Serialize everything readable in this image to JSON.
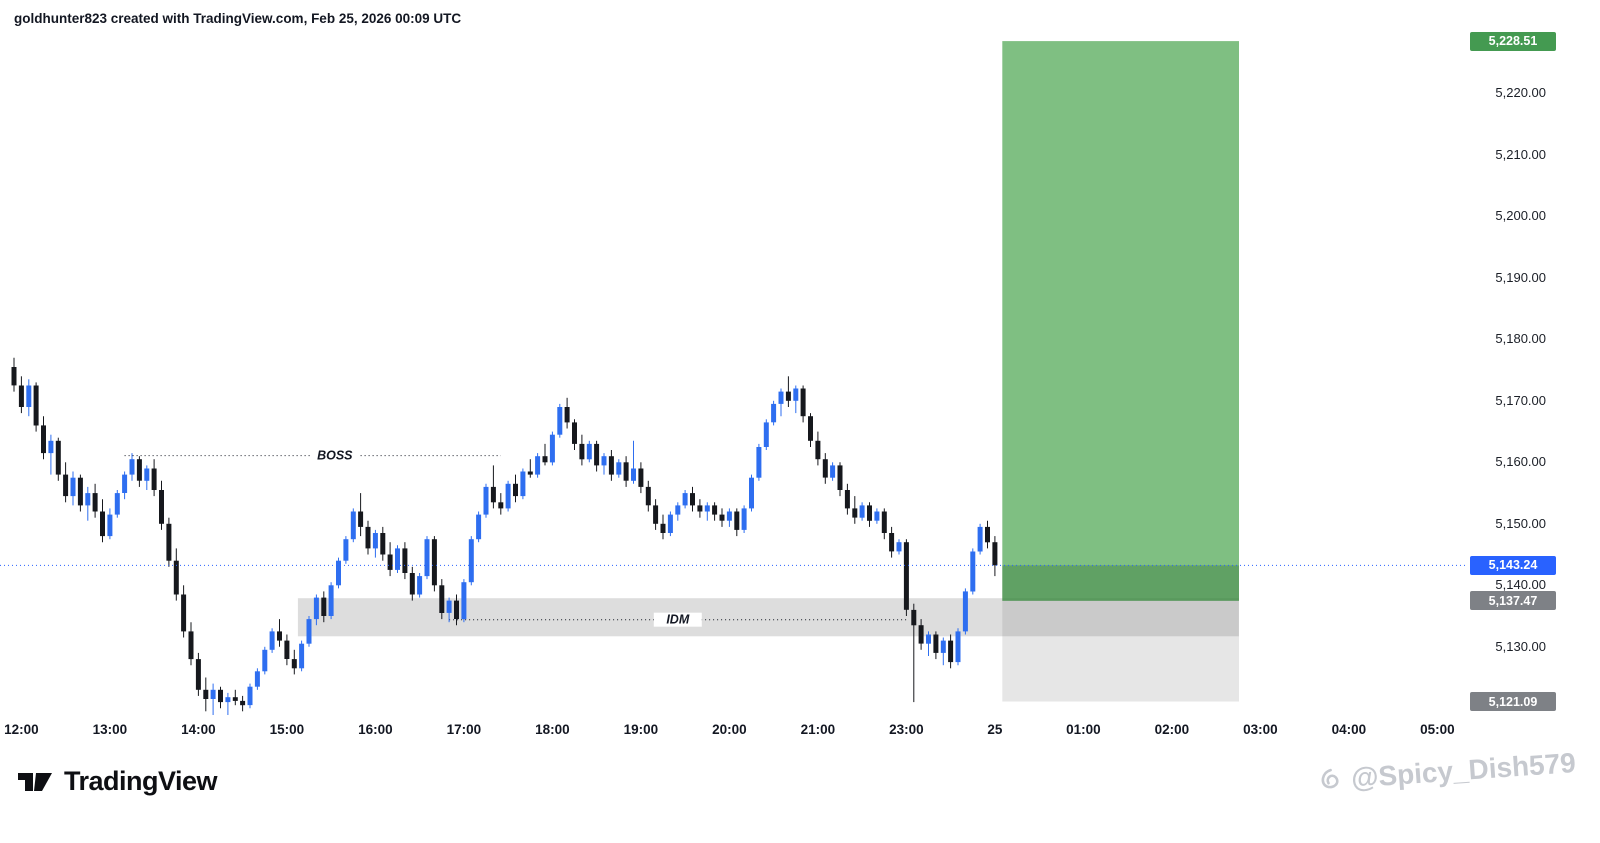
{
  "attribution": "goldhunter823 created with TradingView.com, Feb 25, 2026 00:09 UTC",
  "footer": {
    "brand": "TradingView"
  },
  "watermark": {
    "handle": "@Spicy_Dish579"
  },
  "colors": {
    "up": "#2e6ef0",
    "down": "#16181d",
    "current_price": "#2962ff",
    "badge_green": "#449a51",
    "badge_blue": "#2962ff",
    "badge_gray": "#7e8186"
  },
  "chart_data": {
    "type": "candlestick",
    "title": "",
    "price_range_visible": [
      5118.9,
      5235.2
    ],
    "grid": "off",
    "candles": [
      [
        5175.5,
        5177,
        5171.5,
        5172.5
      ],
      [
        5172.5,
        5174,
        5168,
        5169
      ],
      [
        5169,
        5173.5,
        5167.5,
        5172.5
      ],
      [
        5172.5,
        5173,
        5165,
        5166
      ],
      [
        5166,
        5167.5,
        5160.5,
        5161.5
      ],
      [
        5161.5,
        5164.5,
        5158,
        5163.5
      ],
      [
        5163.5,
        5164,
        5157,
        5158
      ],
      [
        5158,
        5160,
        5153.5,
        5154.5
      ],
      [
        5154.5,
        5158.5,
        5153,
        5157.5
      ],
      [
        5157.5,
        5158,
        5152,
        5153
      ],
      [
        5153,
        5156,
        5150.5,
        5155
      ],
      [
        5155,
        5156.5,
        5151,
        5152
      ],
      [
        5152,
        5154,
        5147,
        5148
      ],
      [
        5148,
        5152.5,
        5147.5,
        5151.5
      ],
      [
        5151.5,
        5155.5,
        5151,
        5155
      ],
      [
        5155,
        5158.5,
        5154,
        5158
      ],
      [
        5158,
        5161.5,
        5157,
        5160.5
      ],
      [
        5160.5,
        5161,
        5156,
        5157
      ],
      [
        5157,
        5159.5,
        5155.5,
        5159
      ],
      [
        5159,
        5160.5,
        5154.5,
        5155.5
      ],
      [
        5155.5,
        5157,
        5149,
        5150
      ],
      [
        5150,
        5151,
        5143,
        5144
      ],
      [
        5144,
        5146,
        5137.5,
        5138.5
      ],
      [
        5138.5,
        5140,
        5131.5,
        5132.5
      ],
      [
        5132.5,
        5134,
        5127,
        5128
      ],
      [
        5128,
        5129,
        5122,
        5123
      ],
      [
        5123,
        5125,
        5119.5,
        5121.5
      ],
      [
        5121.5,
        5124,
        5118.5,
        5123
      ],
      [
        5123,
        5123.5,
        5120,
        5121
      ],
      [
        5121,
        5122.5,
        5118,
        5121.8
      ],
      [
        5121.8,
        5123,
        5120.5,
        5121.2
      ],
      [
        5121.2,
        5122,
        5119.5,
        5120.5
      ],
      [
        5120.5,
        5124,
        5120,
        5123.5
      ],
      [
        5123.5,
        5126.5,
        5123,
        5126
      ],
      [
        5126,
        5130,
        5125.5,
        5129.5
      ],
      [
        5129.5,
        5133,
        5129,
        5132.5
      ],
      [
        5132.5,
        5134.5,
        5130,
        5131
      ],
      [
        5131,
        5132,
        5127,
        5128
      ],
      [
        5128,
        5129.5,
        5125.5,
        5126.5
      ],
      [
        5126.5,
        5131,
        5126,
        5130.5
      ],
      [
        5130.5,
        5135,
        5130,
        5134.5
      ],
      [
        5134.5,
        5138.5,
        5133.5,
        5138
      ],
      [
        5138,
        5139,
        5134,
        5135
      ],
      [
        5135,
        5140.5,
        5134.5,
        5140
      ],
      [
        5140,
        5144.5,
        5139.5,
        5144
      ],
      [
        5144,
        5148,
        5143.5,
        5147.5
      ],
      [
        5147.5,
        5152.5,
        5147,
        5152
      ],
      [
        5152,
        5155,
        5148,
        5149.5
      ],
      [
        5149.5,
        5150.5,
        5145,
        5146
      ],
      [
        5146,
        5149,
        5144.5,
        5148.5
      ],
      [
        5148.5,
        5149.5,
        5144,
        5145
      ],
      [
        5145,
        5147,
        5141.5,
        5142.5
      ],
      [
        5142.5,
        5146.5,
        5142,
        5146
      ],
      [
        5146,
        5147,
        5141,
        5142
      ],
      [
        5142,
        5143,
        5137.5,
        5138.5
      ],
      [
        5138.5,
        5142,
        5138,
        5141.5
      ],
      [
        5141.5,
        5148,
        5141,
        5147.5
      ],
      [
        5147.5,
        5148,
        5139,
        5140
      ],
      [
        5140,
        5141,
        5134.5,
        5135.5
      ],
      [
        5135.5,
        5138,
        5134,
        5137.5
      ],
      [
        5137.5,
        5138.5,
        5133.5,
        5134.5
      ],
      [
        5134.5,
        5141,
        5134,
        5140.5
      ],
      [
        5140.5,
        5148,
        5140,
        5147.5
      ],
      [
        5147.5,
        5152,
        5147,
        5151.5
      ],
      [
        5151.5,
        5156.5,
        5151,
        5156
      ],
      [
        5156,
        5159.5,
        5152.5,
        5153.5
      ],
      [
        5153.5,
        5155,
        5151.5,
        5152.5
      ],
      [
        5152.5,
        5157,
        5152,
        5156.5
      ],
      [
        5156.5,
        5158,
        5153.5,
        5154.5
      ],
      [
        5154.5,
        5159,
        5154,
        5158.5
      ],
      [
        5158.5,
        5160.5,
        5157.5,
        5158
      ],
      [
        5158,
        5161.5,
        5157.5,
        5161
      ],
      [
        5161,
        5163,
        5159.5,
        5160
      ],
      [
        5160,
        5165,
        5159.5,
        5164.5
      ],
      [
        5164.5,
        5169.5,
        5164,
        5169
      ],
      [
        5169,
        5170.5,
        5165.5,
        5166.5
      ],
      [
        5166.5,
        5167,
        5162,
        5163
      ],
      [
        5163,
        5164.5,
        5159.5,
        5160.5
      ],
      [
        5160.5,
        5163.5,
        5160,
        5163
      ],
      [
        5163,
        5163.5,
        5158.5,
        5159.5
      ],
      [
        5159.5,
        5161.5,
        5158,
        5161
      ],
      [
        5161,
        5162,
        5157,
        5158
      ],
      [
        5158,
        5160.5,
        5157.5,
        5160
      ],
      [
        5160,
        5161,
        5156,
        5157
      ],
      [
        5157,
        5163.5,
        5156.5,
        5159
      ],
      [
        5159,
        5160,
        5155,
        5156
      ],
      [
        5156,
        5157,
        5152,
        5153
      ],
      [
        5153,
        5154,
        5149,
        5150
      ],
      [
        5150,
        5151.5,
        5147.5,
        5148.5
      ],
      [
        5148.5,
        5152,
        5148,
        5151.5
      ],
      [
        5151.5,
        5153.5,
        5150.5,
        5153
      ],
      [
        5153,
        5155.5,
        5152.5,
        5155
      ],
      [
        5155,
        5156,
        5152,
        5153
      ],
      [
        5153,
        5154,
        5151,
        5152
      ],
      [
        5152,
        5153.5,
        5150.5,
        5153
      ],
      [
        5153,
        5153.5,
        5150.5,
        5151.5
      ],
      [
        5151.5,
        5152.5,
        5149.5,
        5150.5
      ],
      [
        5150.5,
        5152.5,
        5149.5,
        5152
      ],
      [
        5152,
        5152.5,
        5148,
        5149
      ],
      [
        5149,
        5153,
        5148.5,
        5152.5
      ],
      [
        5152.5,
        5158,
        5152,
        5157.5
      ],
      [
        5157.5,
        5163,
        5157,
        5162.5
      ],
      [
        5162.5,
        5167,
        5162,
        5166.5
      ],
      [
        5166.5,
        5170,
        5166,
        5169.5
      ],
      [
        5169.5,
        5172,
        5167.5,
        5171.5
      ],
      [
        5171.5,
        5174,
        5169,
        5170
      ],
      [
        5170,
        5172.5,
        5168,
        5172
      ],
      [
        5172,
        5172.5,
        5166.5,
        5167.5
      ],
      [
        5167.5,
        5168,
        5162.5,
        5163.5
      ],
      [
        5163.5,
        5165,
        5159.5,
        5160.5
      ],
      [
        5160.5,
        5161.5,
        5156.5,
        5157.5
      ],
      [
        5157.5,
        5160,
        5157,
        5159.5
      ],
      [
        5159.5,
        5160,
        5154.5,
        5155.5
      ],
      [
        5155.5,
        5156.5,
        5151.5,
        5152.5
      ],
      [
        5152.5,
        5154.5,
        5150,
        5151
      ],
      [
        5151,
        5153.5,
        5150.5,
        5153
      ],
      [
        5153,
        5153.5,
        5149.5,
        5150.5
      ],
      [
        5150.5,
        5152.5,
        5150,
        5152
      ],
      [
        5152,
        5152.5,
        5147.5,
        5148.5
      ],
      [
        5148.5,
        5149.5,
        5144.5,
        5145.5
      ],
      [
        5145.5,
        5147.5,
        5145,
        5147
      ],
      [
        5147,
        5147.5,
        5135,
        5136
      ],
      [
        5136,
        5137,
        5121,
        5133.5
      ],
      [
        5133.5,
        5134.5,
        5129.5,
        5130.5
      ],
      [
        5130.5,
        5132.5,
        5128.5,
        5132
      ],
      [
        5132,
        5132.5,
        5128,
        5129
      ],
      [
        5129,
        5131.5,
        5127,
        5131
      ],
      [
        5131,
        5132,
        5126.5,
        5127.5
      ],
      [
        5127.5,
        5133,
        5127,
        5132.5
      ],
      [
        5132.5,
        5139.5,
        5132,
        5139
      ],
      [
        5139,
        5146,
        5138.5,
        5145.5
      ],
      [
        5145.5,
        5150,
        5145,
        5149.5
      ],
      [
        5149.5,
        5150.5,
        5146,
        5147
      ],
      [
        5147,
        5148,
        5141.5,
        5143.24
      ]
    ],
    "annotations": {
      "boss_line": {
        "label": "BOSS",
        "price": 5161.1,
        "from_index": 15,
        "to_index": 66,
        "label_index": 43.5
      },
      "idm_line": {
        "label": "IDM",
        "price": 5134.4,
        "from_index": 59,
        "to_index": 121,
        "label_index": 90
      },
      "current_price_line": {
        "price": 5143.24,
        "color": "#2962ff"
      },
      "idm_zone": {
        "top": 5137.9,
        "bottom": 5131.7,
        "from_index": 38.5,
        "to_index": 166.1,
        "fill": "rgba(120,120,120,0.25)"
      },
      "position_tool": {
        "target": 5228.51,
        "entry": 5137.47,
        "stop": 5121.09,
        "current": 5143.24,
        "from_index": 134,
        "to_index": 166.1,
        "profit_color": "rgba(67,160,71,0.68)",
        "filled_color": "rgba(27,94,32,0.30)",
        "loss_color": "rgba(130,130,130,0.20)"
      }
    },
    "price_axis": {
      "labels": [
        {
          "text": "5,220.00",
          "price": 5220
        },
        {
          "text": "5,210.00",
          "price": 5210
        },
        {
          "text": "5,200.00",
          "price": 5200
        },
        {
          "text": "5,190.00",
          "price": 5190
        },
        {
          "text": "5,180.00",
          "price": 5180
        },
        {
          "text": "5,170.00",
          "price": 5170
        },
        {
          "text": "5,160.00",
          "price": 5160
        },
        {
          "text": "5,150.00",
          "price": 5150
        },
        {
          "text": "5,140.00",
          "price": 5140
        },
        {
          "text": "5,130.00",
          "price": 5130
        }
      ],
      "badges": [
        {
          "name": "target-price-badge",
          "text": "5,228.51",
          "price": 5228.51,
          "bg": "#449a51"
        },
        {
          "name": "current-price-badge",
          "text": "5,143.24",
          "price": 5143.24,
          "bg": "#2962ff"
        },
        {
          "name": "entry-price-badge",
          "text": "5,137.47",
          "price": 5137.47,
          "bg": "#7e8186"
        },
        {
          "name": "stop-price-badge",
          "text": "5,121.09",
          "price": 5121.09,
          "bg": "#7e8186"
        }
      ]
    },
    "time_axis": {
      "labels": [
        {
          "text": "12:00",
          "index": 1
        },
        {
          "text": "13:00",
          "index": 13
        },
        {
          "text": "14:00",
          "index": 25
        },
        {
          "text": "15:00",
          "index": 37
        },
        {
          "text": "16:00",
          "index": 49
        },
        {
          "text": "17:00",
          "index": 61
        },
        {
          "text": "18:00",
          "index": 73
        },
        {
          "text": "19:00",
          "index": 85
        },
        {
          "text": "20:00",
          "index": 97
        },
        {
          "text": "21:00",
          "index": 109
        },
        {
          "text": "23:00",
          "index": 121
        },
        {
          "text": "25",
          "index": 133,
          "bold": true
        },
        {
          "text": "01:00",
          "index": 145
        },
        {
          "text": "02:00",
          "index": 157
        },
        {
          "text": "03:00",
          "index": 169
        },
        {
          "text": "04:00",
          "index": 181
        },
        {
          "text": "05:00",
          "index": 193
        }
      ]
    }
  }
}
